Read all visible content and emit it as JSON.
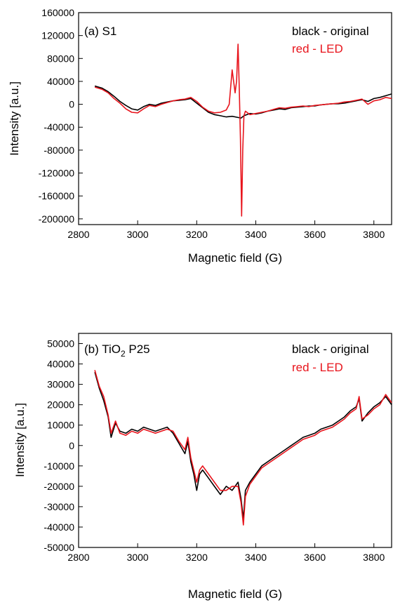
{
  "chart_data": [
    {
      "type": "line",
      "panel_label": "(a) S1",
      "xlabel": "Magnetic field (G)",
      "ylabel": "Intensity [a.u.]",
      "xlim": [
        2800,
        3860
      ],
      "ylim": [
        -210000,
        160000
      ],
      "x_ticks": [
        2800,
        3000,
        3200,
        3400,
        3600,
        3800
      ],
      "y_ticks": [
        160000,
        120000,
        80000,
        40000,
        0,
        -40000,
        -80000,
        -120000,
        -160000,
        -200000
      ],
      "legend_position": "top-right",
      "legend": [
        {
          "text": "black - original",
          "color": "#000000"
        },
        {
          "text": "red - LED",
          "color": "#e8141c"
        }
      ],
      "series": [
        {
          "color": "#000000",
          "x": [
            2855,
            2880,
            2900,
            2920,
            2940,
            2960,
            2980,
            3000,
            3020,
            3040,
            3060,
            3080,
            3100,
            3120,
            3140,
            3160,
            3180,
            3200,
            3220,
            3240,
            3260,
            3280,
            3300,
            3320,
            3340,
            3350,
            3360,
            3380,
            3400,
            3420,
            3440,
            3460,
            3480,
            3500,
            3520,
            3540,
            3560,
            3580,
            3600,
            3620,
            3640,
            3660,
            3680,
            3700,
            3720,
            3740,
            3760,
            3780,
            3800,
            3820,
            3840,
            3860
          ],
          "y": [
            32000,
            28000,
            22000,
            14000,
            5000,
            -2000,
            -8000,
            -10000,
            -4000,
            0,
            -2000,
            2000,
            4000,
            6000,
            7000,
            8000,
            10000,
            2000,
            -6000,
            -14000,
            -18000,
            -20000,
            -22000,
            -21000,
            -23000,
            -24000,
            -20000,
            -16000,
            -17000,
            -15000,
            -12000,
            -10000,
            -8000,
            -9000,
            -6000,
            -5000,
            -4000,
            -3000,
            -3000,
            -1000,
            0,
            1000,
            1000,
            2000,
            4000,
            6000,
            8000,
            5000,
            10000,
            12000,
            15000,
            18000
          ]
        },
        {
          "color": "#e8141c",
          "x": [
            2855,
            2880,
            2900,
            2920,
            2940,
            2960,
            2980,
            3000,
            3020,
            3040,
            3060,
            3080,
            3100,
            3120,
            3140,
            3160,
            3180,
            3200,
            3220,
            3240,
            3260,
            3280,
            3300,
            3310,
            3320,
            3325,
            3330,
            3335,
            3340,
            3344,
            3348,
            3352,
            3356,
            3360,
            3365,
            3370,
            3380,
            3400,
            3420,
            3440,
            3460,
            3480,
            3500,
            3520,
            3540,
            3560,
            3580,
            3600,
            3620,
            3640,
            3660,
            3680,
            3700,
            3720,
            3740,
            3760,
            3780,
            3800,
            3820,
            3840,
            3860
          ],
          "y": [
            30000,
            26000,
            20000,
            10000,
            2000,
            -8000,
            -14000,
            -15000,
            -8000,
            -2000,
            -4000,
            0,
            3000,
            6000,
            8000,
            9000,
            12000,
            5000,
            -5000,
            -12000,
            -15000,
            -14000,
            -10000,
            0,
            60000,
            40000,
            20000,
            40000,
            105000,
            30000,
            -60000,
            -195000,
            -80000,
            -20000,
            -12000,
            -14000,
            -18000,
            -16000,
            -14000,
            -12000,
            -9000,
            -6000,
            -7000,
            -5000,
            -4000,
            -3000,
            -4000,
            -2000,
            -1000,
            0,
            1000,
            2000,
            4000,
            5000,
            7000,
            9000,
            0,
            6000,
            8000,
            12000,
            10000
          ]
        }
      ]
    },
    {
      "type": "line",
      "panel_label_prefix": "(b) TiO",
      "panel_label_sub": "2",
      "panel_label_suffix": " P25",
      "xlabel": "Magnetic field (G)",
      "ylabel": "Intensity [a.u.]",
      "xlim": [
        2800,
        3860
      ],
      "ylim": [
        -50000,
        55000
      ],
      "x_ticks": [
        2800,
        3000,
        3200,
        3400,
        3600,
        3800
      ],
      "y_ticks": [
        50000,
        40000,
        30000,
        20000,
        10000,
        0,
        -10000,
        -20000,
        -30000,
        -40000,
        -50000
      ],
      "legend_position": "top-right",
      "legend": [
        {
          "text": "black - original",
          "color": "#000000"
        },
        {
          "text": "red - LED",
          "color": "#e8141c"
        }
      ],
      "series": [
        {
          "color": "#000000",
          "x": [
            2855,
            2870,
            2885,
            2900,
            2910,
            2925,
            2940,
            2960,
            2980,
            3000,
            3020,
            3040,
            3060,
            3080,
            3100,
            3120,
            3140,
            3160,
            3170,
            3180,
            3190,
            3200,
            3210,
            3220,
            3240,
            3260,
            3280,
            3300,
            3320,
            3340,
            3350,
            3358,
            3365,
            3380,
            3400,
            3420,
            3440,
            3460,
            3480,
            3500,
            3520,
            3540,
            3560,
            3580,
            3600,
            3620,
            3640,
            3660,
            3680,
            3700,
            3720,
            3740,
            3750,
            3760,
            3780,
            3800,
            3820,
            3840,
            3860
          ],
          "y": [
            36000,
            28000,
            22000,
            14000,
            4000,
            11000,
            7000,
            6000,
            8000,
            7000,
            9000,
            8000,
            7000,
            8000,
            9000,
            6000,
            1000,
            -4000,
            2000,
            -8000,
            -14000,
            -22000,
            -14000,
            -12000,
            -16000,
            -20000,
            -24000,
            -20000,
            -22000,
            -18000,
            -26000,
            -36000,
            -22000,
            -18000,
            -14000,
            -10000,
            -8000,
            -6000,
            -4000,
            -2000,
            0,
            2000,
            4000,
            5000,
            6000,
            8000,
            9000,
            10000,
            12000,
            14000,
            17000,
            19000,
            23000,
            12000,
            16000,
            19000,
            21000,
            24000,
            20000
          ]
        },
        {
          "color": "#e8141c",
          "x": [
            2855,
            2870,
            2885,
            2900,
            2910,
            2925,
            2940,
            2960,
            2980,
            3000,
            3020,
            3040,
            3060,
            3080,
            3100,
            3120,
            3140,
            3160,
            3170,
            3180,
            3190,
            3200,
            3210,
            3220,
            3240,
            3260,
            3280,
            3300,
            3320,
            3340,
            3350,
            3358,
            3365,
            3380,
            3400,
            3420,
            3440,
            3460,
            3480,
            3500,
            3520,
            3540,
            3560,
            3580,
            3600,
            3620,
            3640,
            3660,
            3680,
            3700,
            3720,
            3740,
            3750,
            3760,
            3780,
            3800,
            3820,
            3840,
            3860
          ],
          "y": [
            37000,
            29000,
            24000,
            15000,
            6000,
            12000,
            6000,
            5000,
            7000,
            6000,
            8000,
            7000,
            6000,
            7000,
            8000,
            7000,
            2000,
            -2000,
            4000,
            -6000,
            -12000,
            -18000,
            -12000,
            -10000,
            -14000,
            -18000,
            -22000,
            -22000,
            -20000,
            -20000,
            -28000,
            -39000,
            -25000,
            -19000,
            -15000,
            -11000,
            -9000,
            -7000,
            -5000,
            -3000,
            -1000,
            1000,
            3000,
            4000,
            5000,
            7000,
            8000,
            9000,
            11000,
            13000,
            16000,
            18000,
            24000,
            13000,
            15000,
            18000,
            20000,
            25000,
            21000
          ]
        }
      ]
    }
  ]
}
